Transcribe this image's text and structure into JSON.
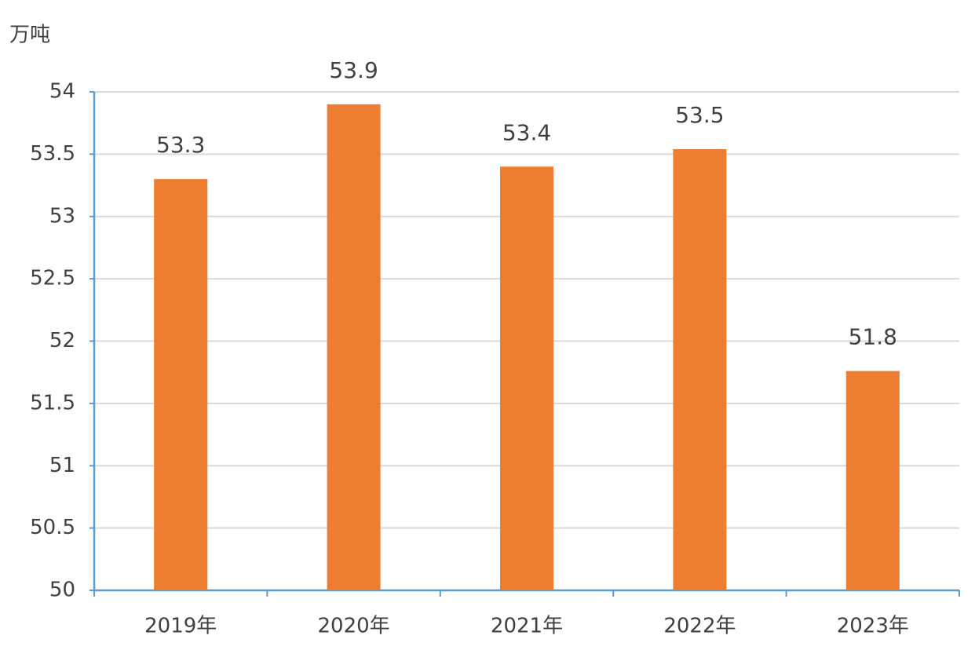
{
  "chart_data": {
    "type": "bar",
    "y_label": "万吨",
    "categories": [
      "2019年",
      "2020年",
      "2021年",
      "2022年",
      "2023年"
    ],
    "values": [
      53.3,
      53.9,
      53.4,
      53.54,
      51.76
    ],
    "value_labels": [
      "53.3",
      "53.9",
      "53.4",
      "53.5",
      "51.8"
    ],
    "color": "#ed7d31",
    "axis_color": "#5b9bd5",
    "ylim": [
      50,
      54
    ],
    "yticks": [
      50,
      50.5,
      51,
      51.5,
      52,
      52.5,
      53,
      53.5,
      54
    ],
    "grid": true
  }
}
